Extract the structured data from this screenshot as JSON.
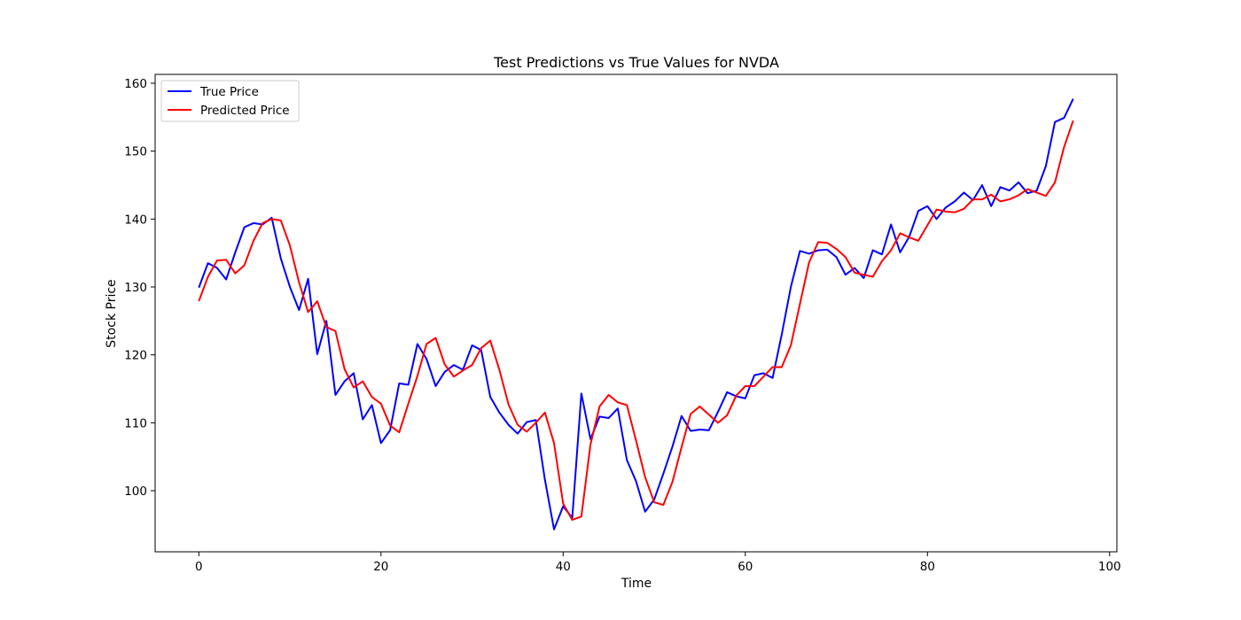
{
  "chart_data": {
    "type": "line",
    "title": "Test Predictions vs True Values for NVDA",
    "xlabel": "Time",
    "ylabel": "Stock Price",
    "xlim": [
      -4.8,
      100.8
    ],
    "ylim": [
      91.0,
      161.3
    ],
    "xticks": [
      0,
      20,
      40,
      60,
      80,
      100
    ],
    "yticks": [
      100,
      110,
      120,
      130,
      140,
      150,
      160
    ],
    "grid": false,
    "legend_position": "upper-left",
    "series": [
      {
        "name": "True Price",
        "color": "#0000ff",
        "values": [
          129.9,
          133.5,
          132.8,
          131.1,
          135.1,
          138.8,
          139.4,
          139.2,
          140.2,
          134.2,
          130.0,
          126.6,
          131.2,
          120.1,
          125.0,
          114.1,
          116.1,
          117.3,
          110.5,
          112.6,
          107.0,
          108.9,
          115.8,
          115.6,
          121.6,
          119.4,
          115.4,
          117.5,
          118.5,
          117.8,
          121.4,
          120.7,
          113.8,
          111.5,
          109.7,
          108.4,
          110.1,
          110.4,
          101.6,
          94.3,
          97.7,
          96.0,
          114.3,
          107.6,
          110.9,
          110.7,
          112.1,
          104.5,
          101.4,
          96.9,
          98.7,
          102.5,
          106.5,
          111.0,
          108.8,
          109.0,
          108.9,
          111.6,
          114.5,
          113.9,
          113.6,
          117.0,
          117.3,
          116.6,
          123.0,
          130.0,
          135.3,
          134.9,
          135.4,
          135.5,
          134.4,
          131.8,
          132.8,
          131.3,
          135.4,
          134.8,
          139.2,
          135.1,
          137.4,
          141.2,
          141.9,
          140.0,
          141.7,
          142.6,
          143.9,
          142.8,
          145.0,
          141.9,
          144.7,
          144.2,
          145.4,
          143.8,
          144.2,
          147.8,
          154.3,
          154.9,
          157.7
        ]
      },
      {
        "name": "Predicted Price",
        "color": "#ff0000",
        "values": [
          127.9,
          131.5,
          133.9,
          134.0,
          132.0,
          133.2,
          136.8,
          139.4,
          140.0,
          139.8,
          136.1,
          130.7,
          126.3,
          127.9,
          124.1,
          123.5,
          117.9,
          115.2,
          116.1,
          113.8,
          112.8,
          109.6,
          108.6,
          112.8,
          116.9,
          121.6,
          122.5,
          118.6,
          116.8,
          117.7,
          118.5,
          121.0,
          122.1,
          117.8,
          112.7,
          109.7,
          108.7,
          110.0,
          111.5,
          107.0,
          98.1,
          95.7,
          96.2,
          106.8,
          112.4,
          114.1,
          113.0,
          112.6,
          107.4,
          102.0,
          98.3,
          97.9,
          101.3,
          106.4,
          111.3,
          112.4,
          111.2,
          110.0,
          111.1,
          114.0,
          115.4,
          115.4,
          116.8,
          118.2,
          118.2,
          121.4,
          127.5,
          133.6,
          136.6,
          136.5,
          135.6,
          134.4,
          132.1,
          131.8,
          131.5,
          133.8,
          135.4,
          137.9,
          137.3,
          136.8,
          139.1,
          141.4,
          141.1,
          141.0,
          141.5,
          142.9,
          142.9,
          143.6,
          142.6,
          142.9,
          143.5,
          144.4,
          143.9,
          143.4,
          145.4,
          150.6,
          154.5
        ]
      }
    ]
  }
}
